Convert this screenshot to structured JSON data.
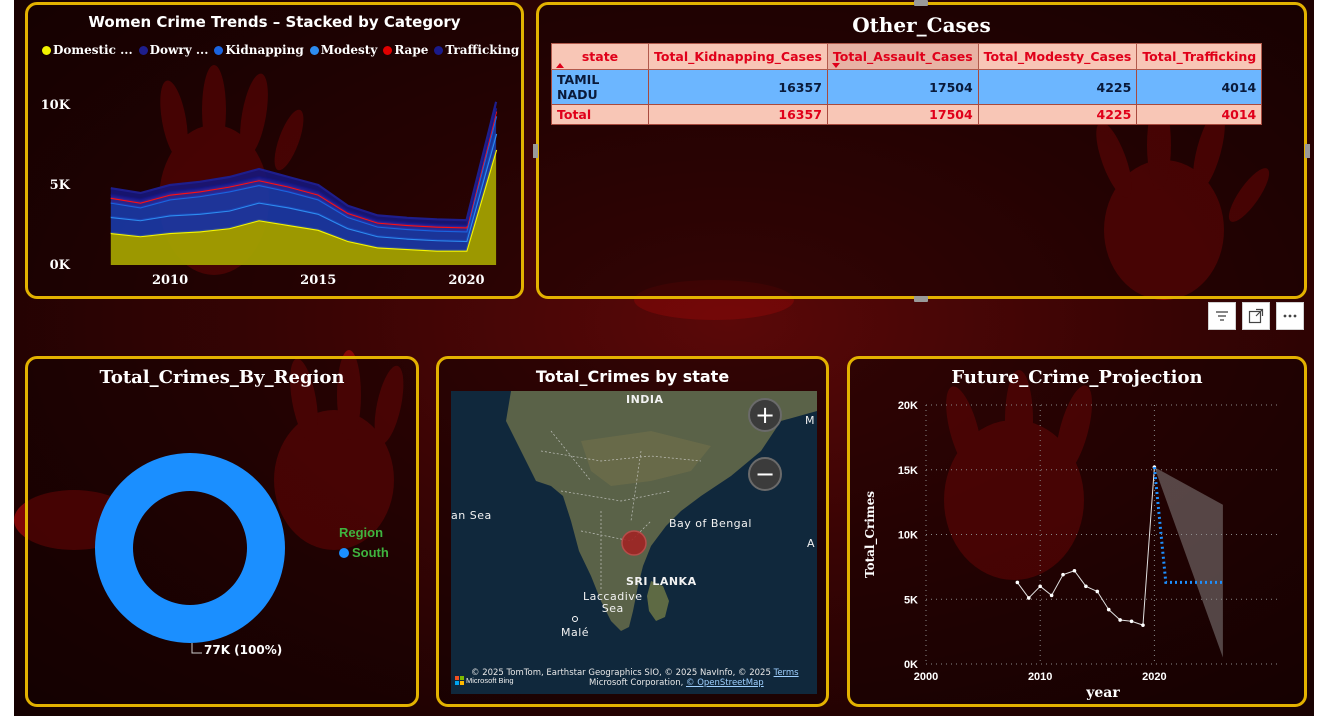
{
  "colors": {
    "panel_border": "#e3b200",
    "accent_red": "#e0001a",
    "table_header_bg": "#f8c6b6",
    "table_row_bg": "#6cb6ff",
    "donut_blue": "#1b8fff",
    "legend_green": "#3fb43f"
  },
  "trends": {
    "title": "Women Crime Trends – Stacked by Category",
    "legend": [
      {
        "label": "Domestic ...",
        "color": "#f2f200"
      },
      {
        "label": "Dowry ...",
        "color": "#1e1e8c"
      },
      {
        "label": "Kidnapping",
        "color": "#1a64e0"
      },
      {
        "label": "Modesty",
        "color": "#2d8cf0"
      },
      {
        "label": "Rape",
        "color": "#e00000"
      },
      {
        "label": "Trafficking",
        "color": "#1a1a8a"
      }
    ],
    "y_ticks": [
      "0K",
      "5K",
      "10K"
    ],
    "x_ticks": [
      "2010",
      "2015",
      "2020"
    ]
  },
  "other_cases": {
    "title": "Other_Cases",
    "columns": [
      "state",
      "Total_Kidnapping_Cases",
      "Total_Assault_Cases",
      "Total_Modesty_Cases",
      "Total_Trafficking"
    ],
    "rows": [
      [
        "TAMIL NADU",
        "16357",
        "17504",
        "4225",
        "4014"
      ]
    ],
    "total": [
      "Total",
      "16357",
      "17504",
      "4225",
      "4014"
    ]
  },
  "toolbar": {
    "filter_icon": "filter-icon",
    "focus_icon": "focus-mode-icon",
    "more_icon": "more-options-icon"
  },
  "region": {
    "title": "Total_Crimes_By_Region",
    "legend_title": "Region",
    "legend_item": "South",
    "data_label": "77K (100%)"
  },
  "map": {
    "title": "Total_Crimes by state",
    "labels": {
      "india": "INDIA",
      "bay": "Bay of Bengal",
      "srilanka": "SRI LANKA",
      "laccadive": "Laccadive\nSea",
      "male": "Malé",
      "sea": "an Sea",
      "m": "M",
      "a": "A"
    },
    "zoom_in": "+",
    "zoom_out": "−",
    "credit_line1": "© 2025 TomTom, Earthstar Geographics SIO, © 2025 NavInfo, © 2025",
    "credit_terms": "Terms",
    "credit_line2": "Microsoft Corporation,",
    "credit_osm": "© OpenStreetMap",
    "brand": "Microsoft Bing"
  },
  "projection": {
    "title": "Future_Crime_Projection",
    "ylabel": "Total_Crimes",
    "xlabel": "year",
    "y_ticks": [
      "0K",
      "5K",
      "10K",
      "15K",
      "20K"
    ],
    "x_ticks": [
      "2000",
      "2010",
      "2020"
    ]
  },
  "chart_data": [
    {
      "type": "area",
      "title": "Women Crime Trends – Stacked by Category",
      "stacked": true,
      "x": [
        2008,
        2009,
        2010,
        2011,
        2012,
        2013,
        2014,
        2015,
        2016,
        2017,
        2018,
        2019,
        2020,
        2021
      ],
      "xlim": [
        2007.3,
        2021.4
      ],
      "ylim": [
        0,
        12000
      ],
      "series": [
        {
          "name": "Domestic ...",
          "values": [
            2000,
            1800,
            2000,
            2100,
            2300,
            2800,
            2500,
            2200,
            1500,
            1100,
            1000,
            900,
            900,
            7200
          ]
        },
        {
          "name": "Modesty",
          "values": [
            1000,
            1000,
            1100,
            1100,
            1100,
            1100,
            1100,
            1000,
            800,
            700,
            650,
            650,
            600,
            1000
          ]
        },
        {
          "name": "Kidnapping",
          "values": [
            900,
            800,
            1000,
            1100,
            1200,
            1100,
            1000,
            900,
            700,
            600,
            600,
            600,
            600,
            1100
          ]
        },
        {
          "name": "Rape",
          "values": [
            300,
            300,
            300,
            300,
            300,
            300,
            300,
            300,
            250,
            250,
            250,
            250,
            250,
            300
          ]
        },
        {
          "name": "Trafficking",
          "values": [
            200,
            200,
            200,
            200,
            200,
            200,
            200,
            200,
            150,
            150,
            150,
            150,
            150,
            200
          ]
        },
        {
          "name": "Dowry ...",
          "values": [
            400,
            400,
            400,
            400,
            400,
            500,
            400,
            400,
            300,
            300,
            300,
            300,
            300,
            400
          ]
        }
      ]
    },
    {
      "type": "pie",
      "title": "Total_Crimes_By_Region",
      "categories": [
        "South"
      ],
      "values": [
        77000
      ],
      "donut": true
    },
    {
      "type": "line",
      "title": "Future_Crime_Projection",
      "xlabel": "year",
      "ylabel": "Total_Crimes",
      "xlim": [
        2000,
        2031
      ],
      "ylim": [
        0,
        20000
      ],
      "grid": true,
      "series": [
        {
          "x": [
            2008,
            2009,
            2010,
            2011,
            2012,
            2013,
            2014,
            2015,
            2016,
            2017,
            2018,
            2019,
            2020
          ],
          "values": [
            6300,
            5100,
            6000,
            5300,
            6900,
            7200,
            6000,
            5600,
            4200,
            3400,
            3300,
            3000,
            15200
          ]
        },
        {
          "x": [
            2020,
            2021,
            2022,
            2023,
            2024,
            2025,
            2026
          ],
          "values": [
            15200,
            6300,
            6300,
            6300,
            6300,
            6300,
            6300
          ],
          "style": "forecast"
        }
      ],
      "confidence_band": {
        "x": [
          2020,
          2026
        ],
        "upper": [
          15200,
          12300
        ],
        "lower": [
          15200,
          500
        ]
      }
    }
  ]
}
